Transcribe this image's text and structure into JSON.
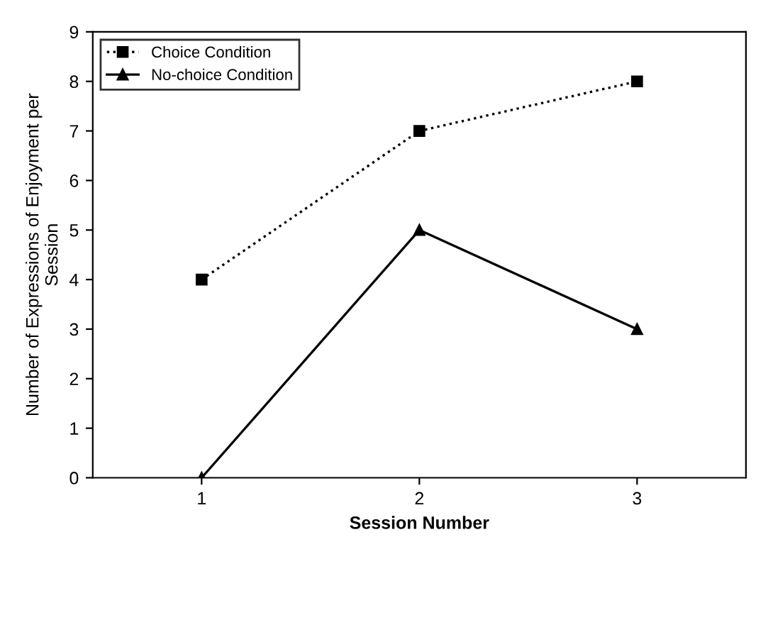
{
  "chart_data": {
    "type": "line",
    "xlabel": "Session Number",
    "ylabel": "Number of Expressions of Enjoyment per\nSession",
    "x": [
      1,
      2,
      3
    ],
    "xlim": [
      0.5,
      3.5
    ],
    "xticks": [
      1,
      2,
      3
    ],
    "series": [
      {
        "name": "Choice Condition",
        "color": "#000000",
        "values": [
          4,
          7,
          8
        ],
        "marker": "square",
        "line_style": "dotted"
      },
      {
        "name": "No-choice Condition",
        "color": "#000000",
        "values": [
          0,
          5,
          3
        ],
        "marker": "triangle",
        "line_style": "solid"
      }
    ],
    "ylim": [
      0,
      9
    ],
    "yticks": [
      0,
      1,
      2,
      3,
      4,
      5,
      6,
      7,
      8,
      9
    ],
    "grid": false,
    "legend": "top left"
  }
}
